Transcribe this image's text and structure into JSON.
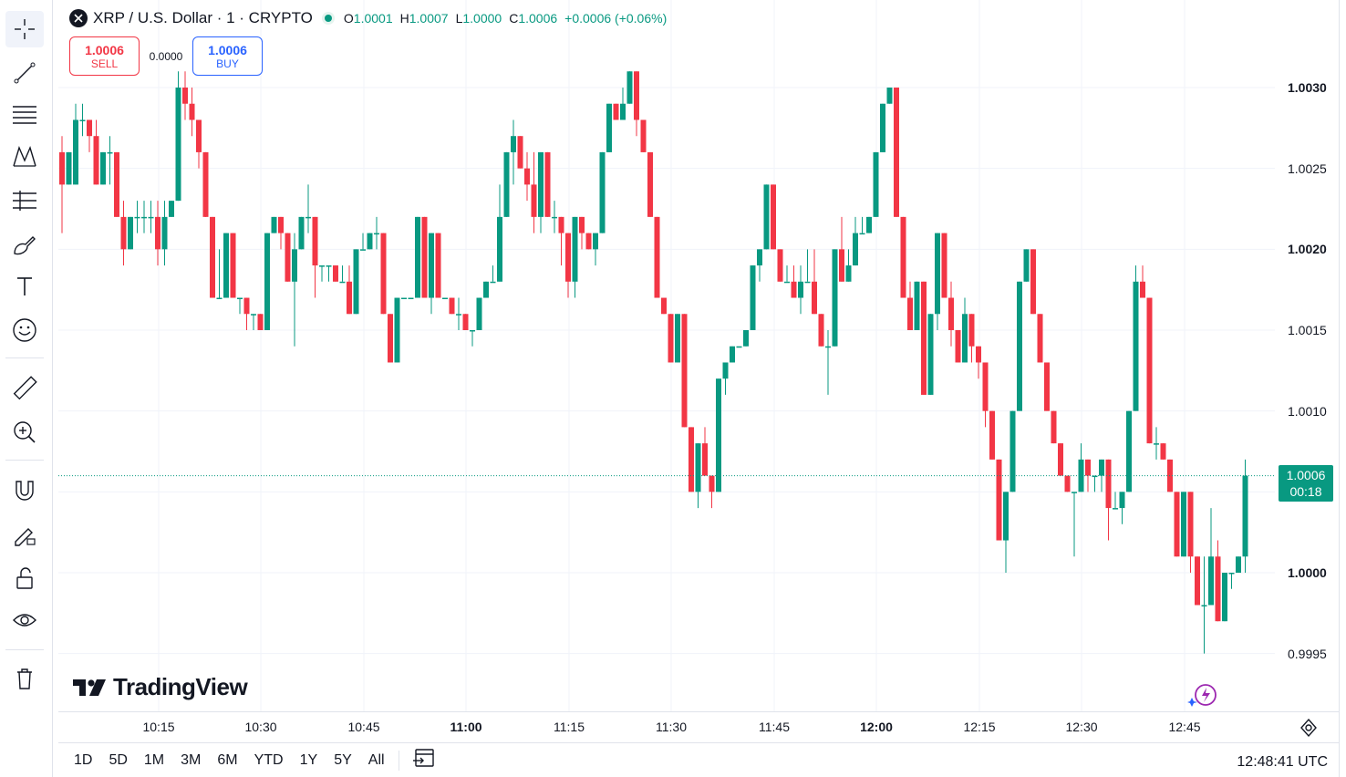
{
  "legend": {
    "symbol": "XRP / U.S. Dollar · 1 · CRYPTO",
    "open_key": "O",
    "open": "1.0001",
    "high_key": "H",
    "high": "1.0007",
    "low_key": "L",
    "low": "1.0000",
    "close_key": "C",
    "close": "1.0006",
    "change": "+0.0006 (+0.06%)"
  },
  "trade": {
    "sell_price": "1.0006",
    "sell_label": "SELL",
    "spread": "0.0000",
    "buy_price": "1.0006",
    "buy_label": "BUY"
  },
  "branding": {
    "logo_text": "TradingView"
  },
  "last_price": {
    "price": "1.0006",
    "countdown": "00:18"
  },
  "colors": {
    "up": "#089981",
    "down": "#f23645",
    "grid": "#f0f3fa"
  },
  "ranges": [
    "1D",
    "5D",
    "1M",
    "3M",
    "6M",
    "YTD",
    "1Y",
    "5Y",
    "All"
  ],
  "clock": "12:48:41 UTC",
  "tools": [
    "crosshair-icon",
    "trendline-icon",
    "fib-icon",
    "pattern-icon",
    "prediction-icon",
    "brush-icon",
    "text-icon",
    "emoji-icon",
    "ruler-icon",
    "zoom-in-icon",
    "magnet-icon",
    "lock-drawing-icon",
    "unlock-icon",
    "eye-icon",
    "trash-icon"
  ],
  "chart_data": {
    "type": "candlestick",
    "interval": "1 minute",
    "y_ticks": [
      "1.0030",
      "1.0025",
      "1.0020",
      "1.0015",
      "1.0010",
      "1.0000",
      "0.9995"
    ],
    "x_ticks": [
      "10:15",
      "10:30",
      "10:45",
      "11:00",
      "11:15",
      "11:30",
      "11:45",
      "12:00",
      "12:15",
      "12:30",
      "12:45"
    ],
    "ylim": [
      0.999,
      1.0033
    ],
    "candles_ohlc": [
      [
        1.0026,
        1.0027,
        1.0021,
        1.0024
      ],
      [
        1.0024,
        1.0026,
        1.0024,
        1.0026
      ],
      [
        1.0024,
        1.0029,
        1.0024,
        1.0028
      ],
      [
        1.0028,
        1.0029,
        1.0027,
        1.0028
      ],
      [
        1.0028,
        1.0028,
        1.0026,
        1.0027
      ],
      [
        1.0027,
        1.0028,
        1.0024,
        1.0024
      ],
      [
        1.0024,
        1.0026,
        1.0024,
        1.0026
      ],
      [
        1.0026,
        1.0027,
        1.0024,
        1.0026
      ],
      [
        1.0026,
        1.0026,
        1.0022,
        1.0022
      ],
      [
        1.0022,
        1.0023,
        1.0019,
        1.002
      ],
      [
        1.002,
        1.0022,
        1.002,
        1.0022
      ],
      [
        1.0022,
        1.0023,
        1.0021,
        1.0022
      ],
      [
        1.0022,
        1.0023,
        1.0021,
        1.0022
      ],
      [
        1.0022,
        1.0023,
        1.0021,
        1.0022
      ],
      [
        1.0022,
        1.0023,
        1.0019,
        1.002
      ],
      [
        1.002,
        1.0023,
        1.0019,
        1.0022
      ],
      [
        1.0022,
        1.0023,
        1.0022,
        1.0023
      ],
      [
        1.0023,
        1.0031,
        1.0023,
        1.003
      ],
      [
        1.003,
        1.0031,
        1.0028,
        1.0029
      ],
      [
        1.0029,
        1.003,
        1.0027,
        1.0028
      ],
      [
        1.0028,
        1.0028,
        1.0025,
        1.0026
      ],
      [
        1.0026,
        1.0026,
        1.0022,
        1.0022
      ],
      [
        1.0022,
        1.0022,
        1.0017,
        1.0017
      ],
      [
        1.0017,
        1.002,
        1.0017,
        1.0017
      ],
      [
        1.0017,
        1.0021,
        1.0017,
        1.0021
      ],
      [
        1.0021,
        1.0021,
        1.0017,
        1.0017
      ],
      [
        1.0017,
        1.0017,
        1.0016,
        1.0017
      ],
      [
        1.0017,
        1.0017,
        1.0015,
        1.0016
      ],
      [
        1.0016,
        1.0016,
        1.0015,
        1.0016
      ],
      [
        1.0016,
        1.0016,
        1.0015,
        1.0015
      ],
      [
        1.0015,
        1.0021,
        1.0015,
        1.0021
      ],
      [
        1.0021,
        1.0022,
        1.0021,
        1.0022
      ],
      [
        1.0022,
        1.0022,
        1.002,
        1.0021
      ],
      [
        1.0021,
        1.0021,
        1.0018,
        1.0018
      ],
      [
        1.0018,
        1.0021,
        1.0014,
        1.002
      ],
      [
        1.002,
        1.0022,
        1.002,
        1.0022
      ],
      [
        1.0022,
        1.0024,
        1.0021,
        1.0022
      ],
      [
        1.0022,
        1.0022,
        1.0017,
        1.0019
      ],
      [
        1.0019,
        1.0019,
        1.0018,
        1.0019
      ],
      [
        1.0019,
        1.0019,
        1.0018,
        1.0019
      ],
      [
        1.0019,
        1.0019,
        1.0018,
        1.0018
      ],
      [
        1.0018,
        1.0019,
        1.0018,
        1.0018
      ],
      [
        1.0018,
        1.0019,
        1.0016,
        1.0016
      ],
      [
        1.0016,
        1.002,
        1.0016,
        1.002
      ],
      [
        1.002,
        1.0021,
        1.002,
        1.002
      ],
      [
        1.002,
        1.0021,
        1.002,
        1.0021
      ],
      [
        1.0021,
        1.0022,
        1.002,
        1.0021
      ],
      [
        1.0021,
        1.0021,
        1.0016,
        1.0016
      ],
      [
        1.0016,
        1.0016,
        1.0013,
        1.0013
      ],
      [
        1.0013,
        1.0017,
        1.0013,
        1.0017
      ],
      [
        1.0017,
        1.0017,
        1.0017,
        1.0017
      ],
      [
        1.0017,
        1.0017,
        1.0017,
        1.0017
      ],
      [
        1.0017,
        1.0022,
        1.0017,
        1.0022
      ],
      [
        1.0022,
        1.0022,
        1.0017,
        1.0017
      ],
      [
        1.0017,
        1.0021,
        1.0016,
        1.0021
      ],
      [
        1.0021,
        1.0021,
        1.0017,
        1.0017
      ],
      [
        1.0017,
        1.0017,
        1.0017,
        1.0017
      ],
      [
        1.0017,
        1.0017,
        1.0016,
        1.0016
      ],
      [
        1.0016,
        1.0017,
        1.0015,
        1.0016
      ],
      [
        1.0016,
        1.0016,
        1.0015,
        1.0015
      ],
      [
        1.0015,
        1.0015,
        1.0014,
        1.0015
      ],
      [
        1.0015,
        1.0017,
        1.0015,
        1.0017
      ],
      [
        1.0017,
        1.0018,
        1.0017,
        1.0018
      ],
      [
        1.0018,
        1.0019,
        1.0018,
        1.0018
      ],
      [
        1.0018,
        1.0024,
        1.0018,
        1.0022
      ],
      [
        1.0022,
        1.0026,
        1.0022,
        1.0026
      ],
      [
        1.0026,
        1.0028,
        1.0024,
        1.0027
      ],
      [
        1.0027,
        1.0027,
        1.0025,
        1.0025
      ],
      [
        1.0025,
        1.0026,
        1.0023,
        1.0024
      ],
      [
        1.0024,
        1.0026,
        1.0021,
        1.0022
      ],
      [
        1.0022,
        1.0026,
        1.0021,
        1.0026
      ],
      [
        1.0026,
        1.0026,
        1.0022,
        1.0022
      ],
      [
        1.0022,
        1.0023,
        1.0021,
        1.0022
      ],
      [
        1.0022,
        1.0022,
        1.0019,
        1.0021
      ],
      [
        1.0021,
        1.0021,
        1.0017,
        1.0018
      ],
      [
        1.0018,
        1.0022,
        1.0017,
        1.0022
      ],
      [
        1.0022,
        1.0022,
        1.002,
        1.0021
      ],
      [
        1.0021,
        1.0021,
        1.002,
        1.002
      ],
      [
        1.002,
        1.0021,
        1.0019,
        1.0021
      ],
      [
        1.0021,
        1.0026,
        1.0021,
        1.0026
      ],
      [
        1.0026,
        1.0029,
        1.0026,
        1.0029
      ],
      [
        1.0029,
        1.0029,
        1.0028,
        1.0028
      ],
      [
        1.0028,
        1.003,
        1.0028,
        1.0029
      ],
      [
        1.0029,
        1.0031,
        1.0029,
        1.0031
      ],
      [
        1.0031,
        1.0031,
        1.0027,
        1.0028
      ],
      [
        1.0028,
        1.0028,
        1.0026,
        1.0026
      ],
      [
        1.0026,
        1.0026,
        1.0022,
        1.0022
      ],
      [
        1.0022,
        1.0022,
        1.0017,
        1.0017
      ],
      [
        1.0017,
        1.0017,
        1.0016,
        1.0016
      ],
      [
        1.0016,
        1.0016,
        1.0013,
        1.0013
      ],
      [
        1.0013,
        1.0016,
        1.0013,
        1.0016
      ],
      [
        1.0016,
        1.0016,
        1.0009,
        1.0009
      ],
      [
        1.0009,
        1.0009,
        1.0005,
        1.0005
      ],
      [
        1.0005,
        1.0008,
        1.0004,
        1.0008
      ],
      [
        1.0008,
        1.0009,
        1.0006,
        1.0006
      ],
      [
        1.0006,
        1.0006,
        1.0004,
        1.0005
      ],
      [
        1.0005,
        1.0012,
        1.0005,
        1.0012
      ],
      [
        1.0012,
        1.0013,
        1.0011,
        1.0013
      ],
      [
        1.0013,
        1.0014,
        1.0013,
        1.0014
      ],
      [
        1.0014,
        1.0014,
        1.0014,
        1.0014
      ],
      [
        1.0014,
        1.0015,
        1.0014,
        1.0015
      ],
      [
        1.0015,
        1.0019,
        1.0015,
        1.0019
      ],
      [
        1.0019,
        1.002,
        1.0018,
        1.002
      ],
      [
        1.002,
        1.0024,
        1.002,
        1.0024
      ],
      [
        1.0024,
        1.0024,
        1.002,
        1.002
      ],
      [
        1.002,
        1.002,
        1.0018,
        1.0018
      ],
      [
        1.0018,
        1.0019,
        1.0018,
        1.0018
      ],
      [
        1.0018,
        1.0019,
        1.0017,
        1.0017
      ],
      [
        1.0017,
        1.0019,
        1.0016,
        1.0018
      ],
      [
        1.0018,
        1.002,
        1.0018,
        1.0018
      ],
      [
        1.0018,
        1.002,
        1.0016,
        1.0016
      ],
      [
        1.0016,
        1.0016,
        1.0014,
        1.0014
      ],
      [
        1.0014,
        1.0015,
        1.0011,
        1.0014
      ],
      [
        1.0014,
        1.002,
        1.0014,
        1.002
      ],
      [
        1.002,
        1.0022,
        1.0018,
        1.0018
      ],
      [
        1.0018,
        1.002,
        1.0018,
        1.0019
      ],
      [
        1.0019,
        1.0022,
        1.0019,
        1.0021
      ],
      [
        1.0021,
        1.0022,
        1.0021,
        1.0021
      ],
      [
        1.0021,
        1.0022,
        1.0021,
        1.0022
      ],
      [
        1.0022,
        1.0026,
        1.0022,
        1.0026
      ],
      [
        1.0026,
        1.0029,
        1.0026,
        1.0029
      ],
      [
        1.0029,
        1.003,
        1.0029,
        1.003
      ],
      [
        1.003,
        1.003,
        1.0022,
        1.0022
      ],
      [
        1.0022,
        1.0022,
        1.0017,
        1.0017
      ],
      [
        1.0017,
        1.0018,
        1.0015,
        1.0015
      ],
      [
        1.0015,
        1.0018,
        1.0015,
        1.0018
      ],
      [
        1.0018,
        1.0018,
        1.0011,
        1.0011
      ],
      [
        1.0011,
        1.0016,
        1.0011,
        1.0016
      ],
      [
        1.0016,
        1.0021,
        1.0015,
        1.0021
      ],
      [
        1.0021,
        1.0021,
        1.0017,
        1.0017
      ],
      [
        1.0017,
        1.0018,
        1.0014,
        1.0015
      ],
      [
        1.0015,
        1.0015,
        1.0013,
        1.0013
      ],
      [
        1.0013,
        1.0017,
        1.0013,
        1.0016
      ],
      [
        1.0016,
        1.0016,
        1.0013,
        1.0014
      ],
      [
        1.0014,
        1.0014,
        1.0012,
        1.0013
      ],
      [
        1.0013,
        1.0013,
        1.0009,
        1.001
      ],
      [
        1.001,
        1.001,
        1.0007,
        1.0007
      ],
      [
        1.0007,
        1.0007,
        1.0002,
        1.0002
      ],
      [
        1.0002,
        1.0005,
        1.0,
        1.0005
      ],
      [
        1.0005,
        1.001,
        1.0005,
        1.001
      ],
      [
        1.001,
        1.0018,
        1.001,
        1.0018
      ],
      [
        1.0018,
        1.002,
        1.0018,
        1.002
      ],
      [
        1.002,
        1.002,
        1.0016,
        1.0016
      ],
      [
        1.0016,
        1.0016,
        1.0013,
        1.0013
      ],
      [
        1.0013,
        1.0013,
        1.001,
        1.001
      ],
      [
        1.001,
        1.001,
        1.0008,
        1.0008
      ],
      [
        1.0008,
        1.0008,
        1.0006,
        1.0006
      ],
      [
        1.0006,
        1.0006,
        1.0005,
        1.0005
      ],
      [
        1.0005,
        1.0005,
        1.0001,
        1.0005
      ],
      [
        1.0005,
        1.0008,
        1.0005,
        1.0007
      ],
      [
        1.0007,
        1.0007,
        1.0005,
        1.0006
      ],
      [
        1.0006,
        1.0006,
        1.0005,
        1.0006
      ],
      [
        1.0006,
        1.0007,
        1.0005,
        1.0007
      ],
      [
        1.0007,
        1.0007,
        1.0002,
        1.0004
      ],
      [
        1.0004,
        1.0005,
        1.0004,
        1.0004
      ],
      [
        1.0004,
        1.0005,
        1.0003,
        1.0005
      ],
      [
        1.0005,
        1.001,
        1.0005,
        1.001
      ],
      [
        1.001,
        1.0019,
        1.001,
        1.0018
      ],
      [
        1.0018,
        1.0019,
        1.0017,
        1.0017
      ],
      [
        1.0017,
        1.0017,
        1.0008,
        1.0008
      ],
      [
        1.0008,
        1.0009,
        1.0007,
        1.0008
      ],
      [
        1.0008,
        1.0008,
        1.0007,
        1.0007
      ],
      [
        1.0007,
        1.0007,
        1.0005,
        1.0005
      ],
      [
        1.0005,
        1.0005,
        1.0001,
        1.0001
      ],
      [
        1.0001,
        1.0005,
        1.0001,
        1.0005
      ],
      [
        1.0005,
        1.0005,
        1.0,
        1.0001
      ],
      [
        1.0001,
        1.0001,
        0.9998,
        0.9998
      ],
      [
        0.9998,
        1.0001,
        0.9995,
        0.9998
      ],
      [
        0.9998,
        1.0004,
        0.9998,
        1.0001
      ],
      [
        1.0001,
        1.0002,
        0.9997,
        0.9997
      ],
      [
        0.9997,
        1.0,
        0.9997,
        1.0
      ],
      [
        1.0,
        1.0,
        0.9999,
        1.0
      ],
      [
        1.0,
        1.0001,
        1.0,
        1.0001
      ],
      [
        1.0001,
        1.0007,
        1.0,
        1.0006
      ]
    ]
  }
}
